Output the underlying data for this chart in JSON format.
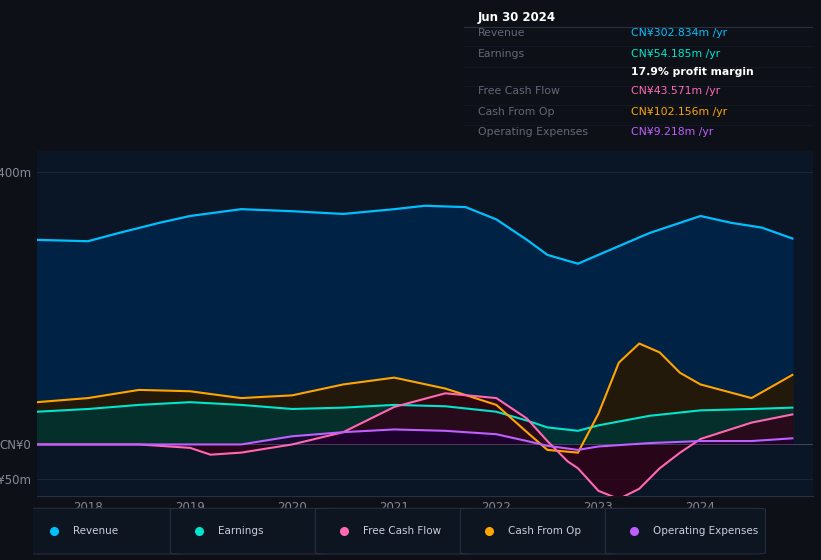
{
  "background_color": "#0d1117",
  "plot_bg_color": "#0a1525",
  "title_box": {
    "date": "Jun 30 2024",
    "rows": [
      {
        "label": "Revenue",
        "value": "CN¥302.834m /yr",
        "value_color": "#00bfff"
      },
      {
        "label": "Earnings",
        "value": "CN¥54.185m /yr",
        "value_color": "#00e5cc"
      },
      {
        "label": "",
        "value": "17.9% profit margin",
        "value_color": "#ffffff"
      },
      {
        "label": "Free Cash Flow",
        "value": "CN¥43.571m /yr",
        "value_color": "#ff69b4"
      },
      {
        "label": "Cash From Op",
        "value": "CN¥102.156m /yr",
        "value_color": "#ffa500"
      },
      {
        "label": "Operating Expenses",
        "value": "CN¥9.218m /yr",
        "value_color": "#bf5fff"
      }
    ]
  },
  "ylim": [
    -75,
    430
  ],
  "ytick_vals": [
    -50,
    0,
    400
  ],
  "ytick_labels": [
    "-CN¥50m",
    "CN¥0",
    "CN¥400m"
  ],
  "xlim": [
    2017.5,
    2025.1
  ],
  "x_years": [
    2018,
    2019,
    2020,
    2021,
    2022,
    2023,
    2024
  ],
  "Revenue": {
    "color": "#00bfff",
    "fill": "#002244",
    "x": [
      2017.5,
      2018.0,
      2018.3,
      2018.7,
      2019.0,
      2019.5,
      2020.0,
      2020.5,
      2021.0,
      2021.3,
      2021.7,
      2022.0,
      2022.3,
      2022.5,
      2022.8,
      2023.0,
      2023.5,
      2024.0,
      2024.3,
      2024.6,
      2024.9
    ],
    "y": [
      300,
      298,
      310,
      325,
      335,
      345,
      342,
      338,
      345,
      350,
      348,
      330,
      300,
      278,
      265,
      278,
      310,
      335,
      325,
      318,
      302
    ]
  },
  "Earnings": {
    "color": "#00e5cc",
    "fill": "#003330",
    "x": [
      2017.5,
      2018.0,
      2018.5,
      2019.0,
      2019.5,
      2020.0,
      2020.5,
      2021.0,
      2021.5,
      2022.0,
      2022.3,
      2022.5,
      2022.8,
      2023.0,
      2023.5,
      2024.0,
      2024.5,
      2024.9
    ],
    "y": [
      48,
      52,
      58,
      62,
      58,
      52,
      54,
      58,
      56,
      48,
      35,
      25,
      20,
      28,
      42,
      50,
      52,
      54
    ]
  },
  "CashFromOp": {
    "color": "#ffa500",
    "fill": "#2a1800",
    "x": [
      2017.5,
      2018.0,
      2018.5,
      2019.0,
      2019.5,
      2020.0,
      2020.5,
      2021.0,
      2021.5,
      2022.0,
      2022.3,
      2022.5,
      2022.8,
      2023.0,
      2023.2,
      2023.4,
      2023.6,
      2023.8,
      2024.0,
      2024.5,
      2024.9
    ],
    "y": [
      62,
      68,
      80,
      78,
      68,
      72,
      88,
      98,
      82,
      58,
      18,
      -8,
      -12,
      45,
      120,
      148,
      135,
      105,
      88,
      68,
      102
    ]
  },
  "FreeCashFlow": {
    "color": "#ff69b4",
    "fill": "#330015",
    "x": [
      2017.5,
      2018.0,
      2018.5,
      2019.0,
      2019.2,
      2019.5,
      2020.0,
      2020.5,
      2021.0,
      2021.5,
      2022.0,
      2022.3,
      2022.5,
      2022.6,
      2022.7,
      2022.8,
      2023.0,
      2023.2,
      2023.4,
      2023.6,
      2023.8,
      2024.0,
      2024.5,
      2024.9
    ],
    "y": [
      0,
      0,
      0,
      -5,
      -15,
      -12,
      0,
      18,
      55,
      75,
      68,
      38,
      5,
      -10,
      -25,
      -35,
      -68,
      -80,
      -65,
      -35,
      -12,
      8,
      32,
      44
    ]
  },
  "OperatingExpenses": {
    "color": "#bf5fff",
    "fill": "#1a0033",
    "x": [
      2017.5,
      2018.0,
      2018.5,
      2019.0,
      2019.5,
      2020.0,
      2020.5,
      2021.0,
      2021.5,
      2022.0,
      2022.3,
      2022.5,
      2022.8,
      2023.0,
      2023.5,
      2024.0,
      2024.5,
      2024.9
    ],
    "y": [
      0,
      0,
      0,
      0,
      0,
      12,
      18,
      22,
      20,
      15,
      5,
      -2,
      -8,
      -3,
      2,
      5,
      5,
      9
    ]
  },
  "legend": [
    {
      "label": "Revenue",
      "color": "#00bfff"
    },
    {
      "label": "Earnings",
      "color": "#00e5cc"
    },
    {
      "label": "Free Cash Flow",
      "color": "#ff69b4"
    },
    {
      "label": "Cash From Op",
      "color": "#ffa500"
    },
    {
      "label": "Operating Expenses",
      "color": "#bf5fff"
    }
  ]
}
